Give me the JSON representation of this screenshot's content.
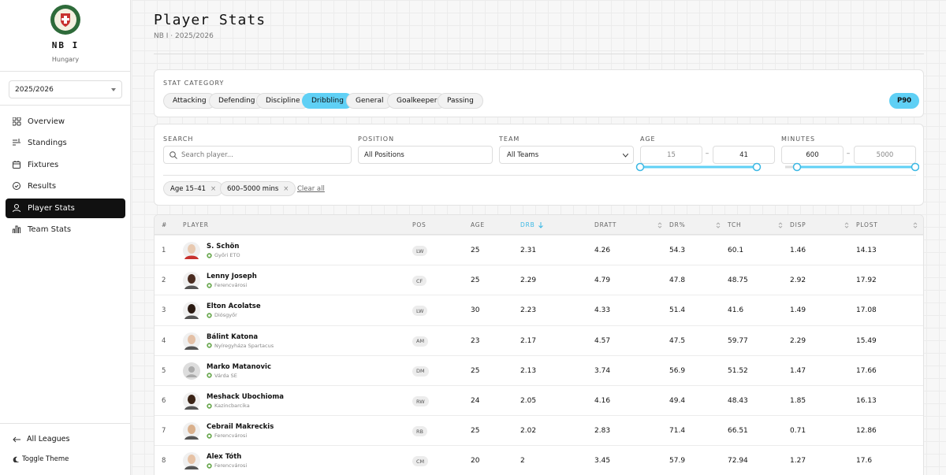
{
  "sidebar": {
    "league_name": "NB I",
    "country": "Hungary",
    "season": "2025/2026",
    "nav": [
      "Overview",
      "Standings",
      "Fixtures",
      "Results",
      "Player Stats",
      "Team Stats"
    ],
    "active_nav": 4,
    "footer": [
      "All Leagues",
      "Toggle Theme"
    ]
  },
  "header": {
    "title": "Player Stats",
    "subtitle": "NB I · 2025/2026"
  },
  "stat_category": {
    "label": "STAT CATEGORY",
    "tabs": [
      "Attacking",
      "Defending",
      "Discipline",
      "Dribbling",
      "General",
      "Goalkeeper",
      "Passing"
    ],
    "active_tab": 3,
    "toggle": "P90"
  },
  "filters": {
    "search_label": "SEARCH",
    "search_placeholder": "Search player...",
    "position_label": "POSITION",
    "position_value": "All Positions",
    "team_label": "TEAM",
    "team_value": "All Teams",
    "age_label": "AGE",
    "age_min": "15",
    "age_max": "41",
    "minutes_label": "MINUTES",
    "minutes_min": "600",
    "minutes_max": "5000",
    "range_separator": "–",
    "chips": [
      "Age 15–41",
      "600–5000 mins"
    ],
    "clear": "Clear all"
  },
  "table": {
    "columns": [
      "#",
      "PLAYER",
      "POS",
      "AGE",
      "DRB",
      "DRATT",
      "DR%",
      "TCH",
      "DISP",
      "PLOST"
    ],
    "sorted_column": 4,
    "rows": [
      {
        "rank": 1,
        "name": "S. Schön",
        "team": "Győri ETO",
        "pos": "LW",
        "age": 25,
        "drb": 2.31,
        "dratt": 4.26,
        "dr_pct": 54.3,
        "tch": 60.1,
        "disp": 1.46,
        "plost": 14.13
      },
      {
        "rank": 2,
        "name": "Lenny Joseph",
        "team": "Ferencvárosi",
        "pos": "CF",
        "age": 25,
        "drb": 2.29,
        "dratt": 4.79,
        "dr_pct": 47.8,
        "tch": 48.75,
        "disp": 2.92,
        "plost": 17.92
      },
      {
        "rank": 3,
        "name": "Elton Acolatse",
        "team": "Diósgyőr",
        "pos": "LW",
        "age": 30,
        "drb": 2.23,
        "dratt": 4.33,
        "dr_pct": 51.4,
        "tch": 41.6,
        "disp": 1.49,
        "plost": 17.08
      },
      {
        "rank": 4,
        "name": "Bálint Katona",
        "team": "Nyíregyháza Spartacus",
        "pos": "AM",
        "age": 23,
        "drb": 2.17,
        "dratt": 4.57,
        "dr_pct": 47.5,
        "tch": 59.77,
        "disp": 2.29,
        "plost": 15.49
      },
      {
        "rank": 5,
        "name": "Marko Matanovic",
        "team": "Várda SE",
        "pos": "DM",
        "age": 25,
        "drb": 2.13,
        "dratt": 3.74,
        "dr_pct": 56.9,
        "tch": 51.52,
        "disp": 1.47,
        "plost": 17.66
      },
      {
        "rank": 6,
        "name": "Meshack Ubochioma",
        "team": "Kazincbarcika",
        "pos": "RW",
        "age": 24,
        "drb": 2.05,
        "dratt": 4.16,
        "dr_pct": 49.4,
        "tch": 48.43,
        "disp": 1.85,
        "plost": 16.13
      },
      {
        "rank": 7,
        "name": "Cebrail Makreckis",
        "team": "Ferencvárosi",
        "pos": "RB",
        "age": 25,
        "drb": 2.02,
        "dratt": 2.83,
        "dr_pct": 71.4,
        "tch": 66.51,
        "disp": 0.71,
        "plost": 12.86
      },
      {
        "rank": 8,
        "name": "Alex Tóth",
        "team": "Ferencvárosi",
        "pos": "CM",
        "age": 20,
        "drb": 2,
        "dratt": 3.45,
        "dr_pct": 57.9,
        "tch": 72.94,
        "disp": 1.27,
        "plost": 17.6
      }
    ]
  }
}
